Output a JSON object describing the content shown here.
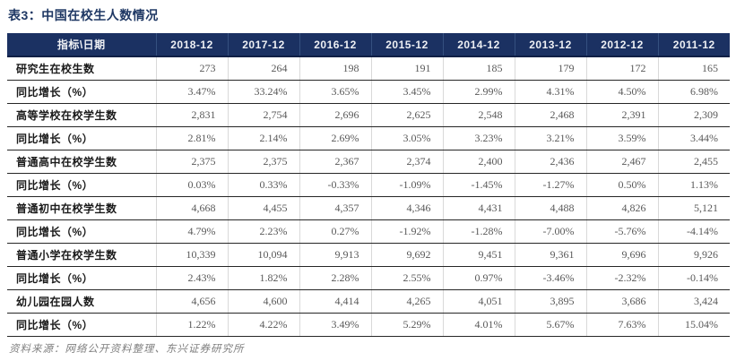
{
  "title": "表3：中国在校生人数情况",
  "footer": "资料来源：网络公开资料整理、东兴证券研究所",
  "colors": {
    "header_bg": "#1b3162",
    "header_text": "#eef0f4",
    "title_text": "#1f3864",
    "row_border": "#262626",
    "col_separator": "#d9d9d9",
    "label_text": "#1a1a1a",
    "value_text": "#595959",
    "note_text": "#7f7f7f"
  },
  "chart_data": {
    "type": "table",
    "title": "表3：中国在校生人数情况",
    "columns": [
      "指标\\日期",
      "2018-12",
      "2017-12",
      "2016-12",
      "2015-12",
      "2014-12",
      "2013-12",
      "2012-12",
      "2011-12"
    ],
    "rows": [
      {
        "label": "研究生在校生数",
        "values": [
          "273",
          "264",
          "198",
          "191",
          "185",
          "179",
          "172",
          "165"
        ]
      },
      {
        "label": "同比增长（%）",
        "values": [
          "3.47%",
          "33.24%",
          "3.65%",
          "3.45%",
          "2.99%",
          "4.31%",
          "4.50%",
          "6.98%"
        ]
      },
      {
        "label": "高等学校在校学生数",
        "values": [
          "2,831",
          "2,754",
          "2,696",
          "2,625",
          "2,548",
          "2,468",
          "2,391",
          "2,309"
        ]
      },
      {
        "label": "同比增长（%）",
        "values": [
          "2.81%",
          "2.14%",
          "2.69%",
          "3.05%",
          "3.23%",
          "3.21%",
          "3.59%",
          "3.44%"
        ]
      },
      {
        "label": "普通高中在校学生数",
        "values": [
          "2,375",
          "2,375",
          "2,367",
          "2,374",
          "2,400",
          "2,436",
          "2,467",
          "2,455"
        ]
      },
      {
        "label": "同比增长（%）",
        "values": [
          "0.03%",
          "0.33%",
          "-0.33%",
          "-1.09%",
          "-1.45%",
          "-1.27%",
          "0.50%",
          "1.13%"
        ]
      },
      {
        "label": "普通初中在校学生数",
        "values": [
          "4,668",
          "4,455",
          "4,357",
          "4,346",
          "4,431",
          "4,488",
          "4,826",
          "5,121"
        ]
      },
      {
        "label": "同比增长（%）",
        "values": [
          "4.79%",
          "2.23%",
          "0.27%",
          "-1.92%",
          "-1.28%",
          "-7.00%",
          "-5.76%",
          "-4.14%"
        ]
      },
      {
        "label": "普通小学在校学生数",
        "values": [
          "10,339",
          "10,094",
          "9,913",
          "9,692",
          "9,451",
          "9,361",
          "9,696",
          "9,926"
        ]
      },
      {
        "label": "同比增长（%）",
        "values": [
          "2.43%",
          "1.82%",
          "2.28%",
          "2.55%",
          "0.97%",
          "-3.46%",
          "-2.32%",
          "-0.14%"
        ]
      },
      {
        "label": "幼儿园在园人数",
        "values": [
          "4,656",
          "4,600",
          "4,414",
          "4,265",
          "4,051",
          "3,895",
          "3,686",
          "3,424"
        ]
      },
      {
        "label": "同比增长（%）",
        "values": [
          "1.22%",
          "4.22%",
          "3.49%",
          "5.29%",
          "4.01%",
          "5.67%",
          "7.63%",
          "15.04%"
        ]
      }
    ]
  }
}
